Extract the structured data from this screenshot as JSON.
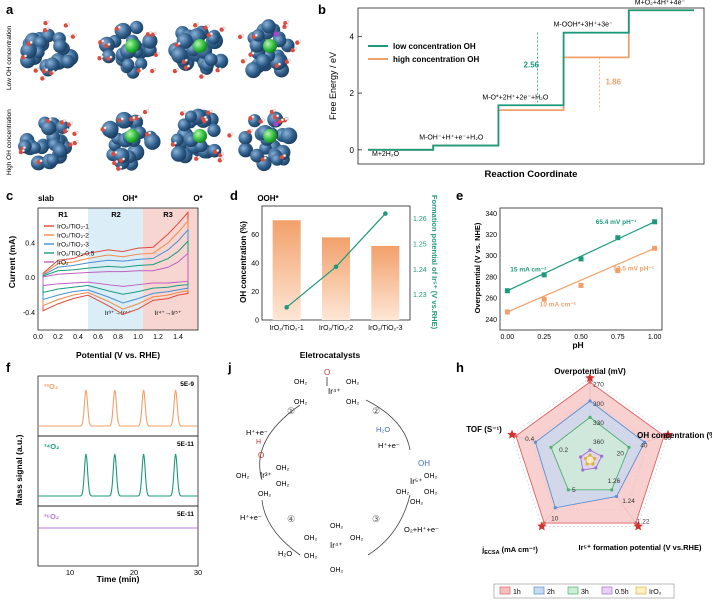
{
  "panels": {
    "a": {
      "letter": "a",
      "row_labels": [
        "Low OH concentration",
        "High OH concentration"
      ],
      "col_labels": [
        "slab",
        "OH*",
        "O*",
        "OOH*"
      ]
    },
    "b": {
      "letter": "b"
    },
    "c": {
      "letter": "c"
    },
    "d": {
      "letter": "d"
    },
    "e": {
      "letter": "e"
    },
    "f": {
      "letter": "f"
    },
    "j": {
      "letter": "j",
      "species": [
        "Ir⁴⁺",
        "Ir⁵⁺",
        "Ir³⁺",
        "Ir⁴⁺"
      ],
      "steps": [
        "①",
        "②",
        "③",
        "④"
      ],
      "labels": {
        "top_in": "H⁺+e⁻",
        "h2o_in": "H₂O",
        "step2_out": "H⁺+e⁻",
        "step3_out": "O₂+H⁺+e⁻",
        "step4_in": "H⁺+e⁻",
        "h2o_out": "H₂O",
        "oh2": "OH₂",
        "o": "O",
        "oh": "OH",
        "h": "H"
      }
    },
    "h": {
      "letter": "h"
    }
  },
  "colors": {
    "teal": "#1d9a7c",
    "orange": "#f2a06a",
    "purple": "#b07ad9",
    "blue_atom": "#2f5f8c",
    "green_atom": "#2fbf3a",
    "red": "#d2332f",
    "pink_bg": "#f7d6d2",
    "blue_bg": "#dbeef8"
  },
  "chart_data": [
    {
      "panel": "b",
      "type": "line",
      "title": "",
      "xlabel": "Reaction Coordinate",
      "ylabel": "Free Energy / eV",
      "ylim": [
        -0.5,
        5
      ],
      "yticks": [
        0,
        2,
        4
      ],
      "steps": [
        "M+2H₂O",
        "M-OH⁻+H⁺+e⁻+H₂O",
        "M-O*+2H⁺+2e⁻+H₂O",
        "M-OOH*+3H⁺+3e⁻",
        "M+O₂+4H⁺+4e⁻"
      ],
      "series": [
        {
          "name": "low concentration OH",
          "values": [
            0,
            0.15,
            1.57,
            4.13,
            4.92
          ]
        },
        {
          "name": "high concentration OH",
          "values": [
            0,
            0.15,
            1.4,
            3.26,
            4.92
          ]
        }
      ],
      "annotations": [
        "2.56",
        "1.86"
      ],
      "legend": "top-left"
    },
    {
      "panel": "c",
      "type": "line",
      "title": "",
      "xlabel": "Potential (V vs. RHE)",
      "ylabel": "Current (mA)",
      "xlim": [
        0,
        1.6
      ],
      "ylim": [
        -0.6,
        0.8
      ],
      "xticks": [
        0.0,
        0.2,
        0.4,
        0.6,
        0.8,
        1.0,
        1.2,
        1.4
      ],
      "yticks": [
        -0.4,
        0.0,
        0.4
      ],
      "regions": [
        "R1",
        "R2",
        "R3"
      ],
      "annotations": [
        "Ir³⁺→Ir⁴⁺",
        "Ir⁴⁺→Ir⁵⁺"
      ],
      "series": [
        {
          "name": "IrO₂/TiO₂-1",
          "upper": [
            0.05,
            0.2,
            0.22,
            0.28,
            0.32,
            0.3,
            0.34,
            0.35,
            0.5,
            0.62,
            0.75
          ],
          "lower": [
            -0.38,
            -0.3,
            -0.24,
            -0.2,
            -0.32,
            -0.42,
            -0.36,
            -0.26,
            -0.24,
            -0.2,
            -0.18
          ]
        },
        {
          "name": "IrO₂/TiO₂-2",
          "upper": [
            0.04,
            0.16,
            0.18,
            0.22,
            0.26,
            0.24,
            0.27,
            0.28,
            0.4,
            0.52,
            0.65
          ],
          "lower": [
            -0.32,
            -0.25,
            -0.2,
            -0.17,
            -0.27,
            -0.36,
            -0.3,
            -0.22,
            -0.2,
            -0.17,
            -0.15
          ]
        },
        {
          "name": "IrO₂/TiO₂-3",
          "upper": [
            0.03,
            0.12,
            0.14,
            0.17,
            0.2,
            0.19,
            0.21,
            0.22,
            0.32,
            0.42,
            0.55
          ],
          "lower": [
            -0.25,
            -0.2,
            -0.16,
            -0.14,
            -0.22,
            -0.29,
            -0.24,
            -0.18,
            -0.16,
            -0.14,
            -0.12
          ]
        },
        {
          "name": "IrO₂/TiO₂-0.5",
          "upper": [
            0.02,
            0.08,
            0.09,
            0.11,
            0.13,
            0.12,
            0.14,
            0.15,
            0.22,
            0.3,
            0.42
          ],
          "lower": [
            -0.17,
            -0.13,
            -0.11,
            -0.09,
            -0.15,
            -0.19,
            -0.16,
            -0.12,
            -0.11,
            -0.09,
            -0.08
          ]
        },
        {
          "name": "IrO₂",
          "upper": [
            0.01,
            0.04,
            0.05,
            0.06,
            0.07,
            0.07,
            0.08,
            0.08,
            0.12,
            0.18,
            0.28
          ],
          "lower": [
            -0.09,
            -0.07,
            -0.06,
            -0.05,
            -0.08,
            -0.1,
            -0.08,
            -0.06,
            -0.06,
            -0.05,
            -0.04
          ]
        }
      ],
      "x": [
        0.05,
        0.2,
        0.35,
        0.5,
        0.7,
        0.85,
        1.0,
        1.15,
        1.3,
        1.4,
        1.5
      ]
    },
    {
      "panel": "d",
      "type": "bar",
      "title": "",
      "xlabel": "Eletrocatalysts",
      "ylabel": "OH concentration (%)",
      "y2label": "Formation potential of Ir⁵⁺ (V vs.RHE)",
      "categories": [
        "IrO₂/TiO₂-1",
        "IrO₂/TiO₂-2",
        "IrO₂/TiO₂-3"
      ],
      "values": [
        70,
        58,
        52
      ],
      "ylim": [
        0,
        80
      ],
      "yticks": [
        0,
        20,
        40,
        60
      ],
      "line_values": [
        1.225,
        1.241,
        1.262
      ],
      "y2lim": [
        1.22,
        1.265
      ],
      "y2ticks": [
        1.23,
        1.24,
        1.25,
        1.26
      ]
    },
    {
      "panel": "e",
      "type": "scatter",
      "title": "",
      "xlabel": "pH",
      "ylabel": "Overpotential (V vs. NHE)",
      "x": [
        0.0,
        0.25,
        0.5,
        0.75,
        1.0
      ],
      "xticks": [
        0.0,
        0.25,
        0.5,
        0.75,
        1.0
      ],
      "xlim": [
        -0.05,
        1.05
      ],
      "ylim": [
        230,
        345
      ],
      "yticks": [
        240,
        260,
        280,
        300,
        320,
        340
      ],
      "series": [
        {
          "name": "15 mA cm⁻²",
          "values": [
            267,
            282,
            297,
            317,
            332
          ],
          "slope_label": "65.4 mV pH⁻¹"
        },
        {
          "name": "10 mA cm⁻²",
          "values": [
            247,
            259,
            272,
            286,
            307
          ],
          "slope_label": "58.5 mV pH⁻¹"
        }
      ]
    },
    {
      "panel": "f",
      "type": "line",
      "title": "",
      "xlabel": "Time (min)",
      "ylabel": "Mass signal (a.u.)",
      "xlim": [
        5,
        30
      ],
      "xticks": [
        10,
        20,
        30
      ],
      "peaks_at": [
        12.5,
        17,
        21.5,
        26.5
      ],
      "series": [
        {
          "name": "³²O₂",
          "scale": "5E-9"
        },
        {
          "name": "³⁴O₂",
          "scale": "5E-11"
        },
        {
          "name": "³⁶O₂",
          "scale": "5E-11"
        }
      ]
    },
    {
      "panel": "h",
      "type": "radar",
      "title": "",
      "axes": [
        "Overpotential (mV)",
        "OH concentration (%)",
        "Ir⁵⁺ formation potential (V vs.RHE)",
        "j_ECSA (mA cm⁻²)",
        "TOF (S⁻¹)"
      ],
      "axis_labels": {
        "tof": "TOF (S⁻¹)",
        "j": "j",
        "j_sub": "ECSA",
        "j_unit": " (mA cm⁻²)"
      },
      "ticks": [
        [
          "360",
          "330",
          "300",
          "270"
        ],
        [
          "20",
          "40",
          "60"
        ],
        [
          "1.26",
          "1.24",
          "1.22"
        ],
        [
          "5",
          "10"
        ],
        [
          "0.2",
          "0.4"
        ]
      ],
      "series": [
        {
          "name": "1h",
          "values": [
            0.95,
            0.95,
            0.95,
            0.95,
            0.95
          ]
        },
        {
          "name": "2h",
          "values": [
            0.72,
            0.7,
            0.55,
            0.72,
            0.7
          ]
        },
        {
          "name": "3h",
          "values": [
            0.52,
            0.5,
            0.45,
            0.45,
            0.5
          ]
        },
        {
          "name": "0.5h",
          "values": [
            0.12,
            0.15,
            0.12,
            0.15,
            0.12
          ]
        },
        {
          "name": "IrO₂",
          "values": [
            0.06,
            0.06,
            0.06,
            0.06,
            0.06
          ]
        }
      ]
    }
  ]
}
